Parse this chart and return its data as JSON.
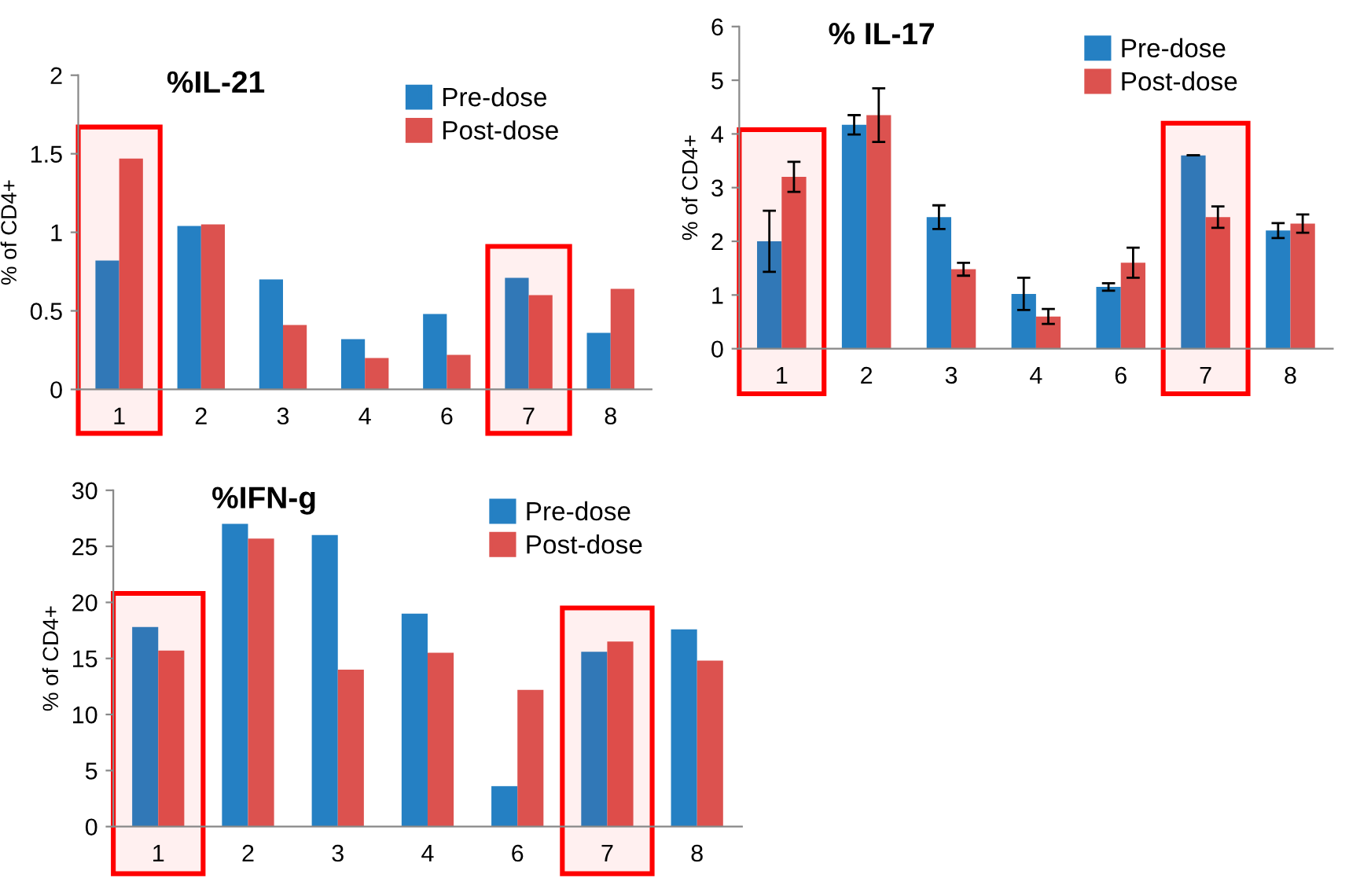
{
  "chart_data": [
    {
      "type": "bar",
      "title": "%IL-21",
      "ylabel": "% of CD4+",
      "categories": [
        "1",
        "2",
        "3",
        "4",
        "6",
        "7",
        "8"
      ],
      "series": [
        {
          "name": "Pre-dose",
          "color": "#2580c3",
          "values": [
            0.82,
            1.04,
            0.7,
            0.32,
            0.48,
            0.71,
            0.36
          ]
        },
        {
          "name": "Post-dose",
          "color": "#dc524f",
          "values": [
            1.47,
            1.05,
            0.41,
            0.2,
            0.22,
            0.6,
            0.64
          ]
        }
      ],
      "ylim": [
        0,
        2
      ],
      "yticks": [
        0,
        0.5,
        1,
        {
          "value": 1.5,
          "label": "1.5"
        },
        2
      ],
      "legend": "top right",
      "grid": false,
      "bands": [
        {
          "axis": "x",
          "from": "1",
          "to": "1",
          "color": "#ff0000"
        },
        {
          "axis": "x",
          "from": "7",
          "to": "7",
          "color": "#ff0000"
        }
      ]
    },
    {
      "type": "bar",
      "title": "% IL-17",
      "ylabel": "% of CD4+",
      "categories": [
        "1",
        "2",
        "3",
        "4",
        "6",
        "7",
        "8"
      ],
      "series": [
        {
          "name": "Pre-dose",
          "color": "#2580c3",
          "values": [
            2.0,
            4.17,
            2.45,
            1.02,
            1.15,
            3.6,
            2.2
          ],
          "errors": [
            0.57,
            0.18,
            0.22,
            0.3,
            0.07,
            0.0,
            0.14
          ]
        },
        {
          "name": "Post-dose",
          "color": "#dc524f",
          "values": [
            3.2,
            4.35,
            1.48,
            0.6,
            1.6,
            2.45,
            2.33
          ],
          "errors": [
            0.28,
            0.5,
            0.12,
            0.14,
            0.28,
            0.2,
            0.17
          ]
        }
      ],
      "ylim": [
        0,
        6
      ],
      "yticks": [
        0,
        1,
        2,
        3,
        4,
        5,
        6
      ],
      "legend": "top right",
      "grid": false,
      "bands": [
        {
          "axis": "x",
          "from": "1",
          "to": "1",
          "color": "#ff0000"
        },
        {
          "axis": "x",
          "from": "7",
          "to": "7",
          "color": "#ff0000"
        }
      ]
    },
    {
      "type": "bar",
      "title": "%IFN-g",
      "ylabel": "% of CD4+",
      "categories": [
        "1",
        "2",
        "3",
        "4",
        "6",
        "7",
        "8"
      ],
      "series": [
        {
          "name": "Pre-dose",
          "color": "#2580c3",
          "values": [
            17.8,
            27,
            26,
            19,
            3.6,
            15.6,
            17.6
          ]
        },
        {
          "name": "Post-dose",
          "color": "#dc524f",
          "values": [
            15.7,
            25.7,
            14,
            15.5,
            12.2,
            16.5,
            14.8
          ]
        }
      ],
      "ylim": [
        0,
        30
      ],
      "yticks": [
        0,
        5,
        10,
        15,
        20,
        25,
        30
      ],
      "legend": "top right",
      "grid": false,
      "bands": [
        {
          "axis": "x",
          "from": "1",
          "to": "1",
          "color": "#ff0000"
        },
        {
          "axis": "x",
          "from": "7",
          "to": "7",
          "color": "#ff0000"
        }
      ]
    }
  ]
}
